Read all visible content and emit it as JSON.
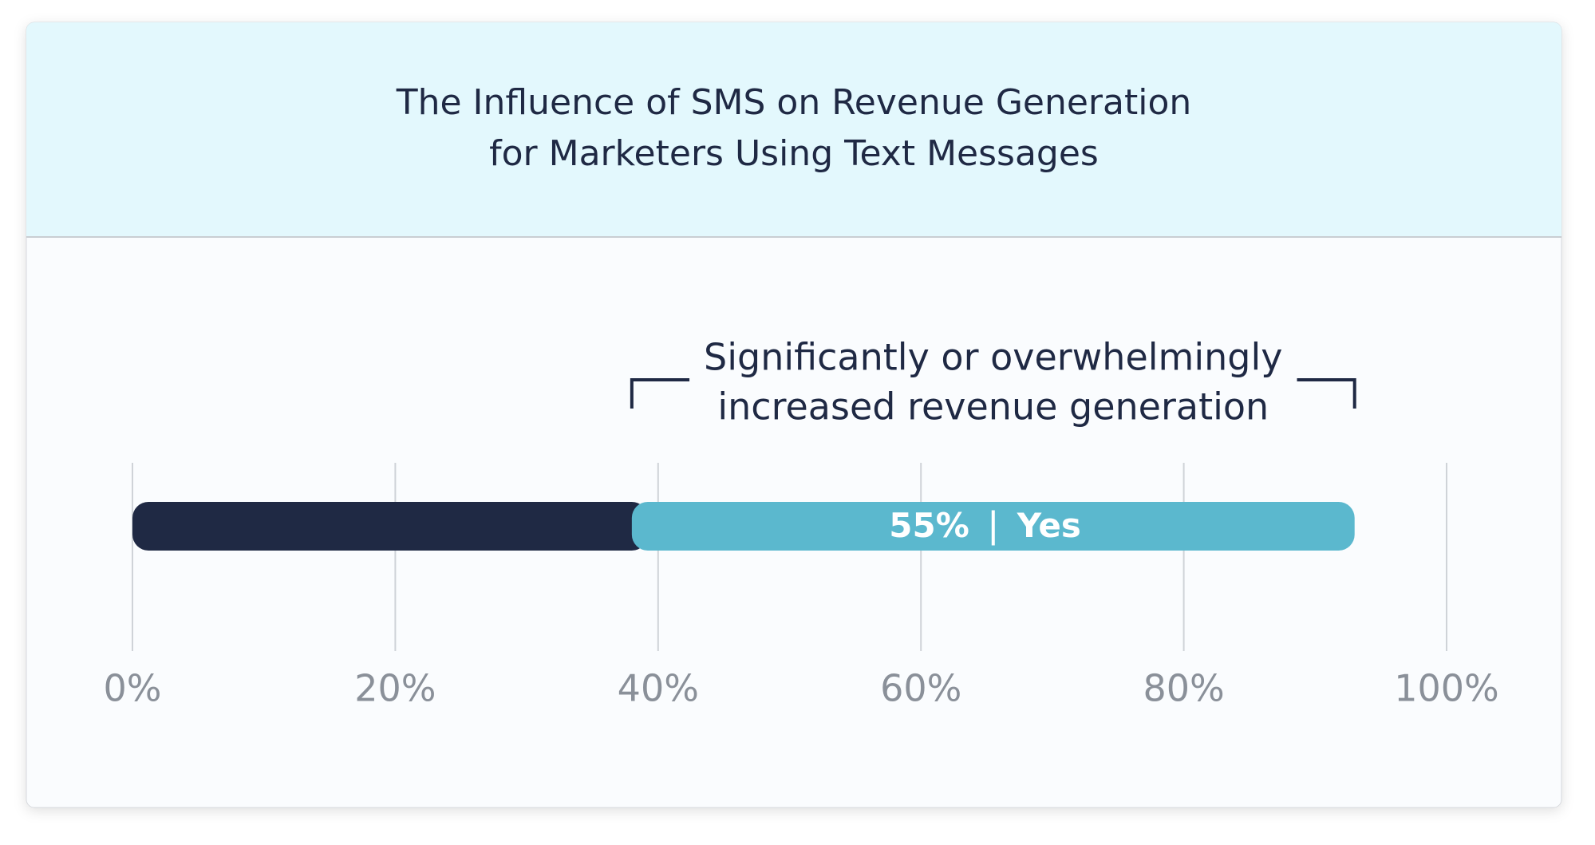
{
  "chart_data": {
    "type": "stacked-bar",
    "title": [
      "The Influence of SMS on Revenue Generation",
      "for Marketers Using Text Messages"
    ],
    "annotation": [
      "Significantly or overwhelmingly",
      "increased revenue generation"
    ],
    "series": [
      {
        "color": "#1f2944",
        "values": [
          38
        ]
      },
      {
        "name": "Yes",
        "color": "#5bb8ce",
        "values": [
          55
        ],
        "value_labels": [
          "55%"
        ]
      }
    ],
    "xlim": [
      0,
      100
    ],
    "xticks": [
      {
        "value": 0,
        "label": "0%"
      },
      {
        "value": 20,
        "label": "20%"
      },
      {
        "value": 40,
        "label": "40%"
      },
      {
        "value": 60,
        "label": "60%"
      },
      {
        "value": 80,
        "label": "80%"
      },
      {
        "value": 100,
        "label": "100%"
      }
    ],
    "grid": true
  }
}
